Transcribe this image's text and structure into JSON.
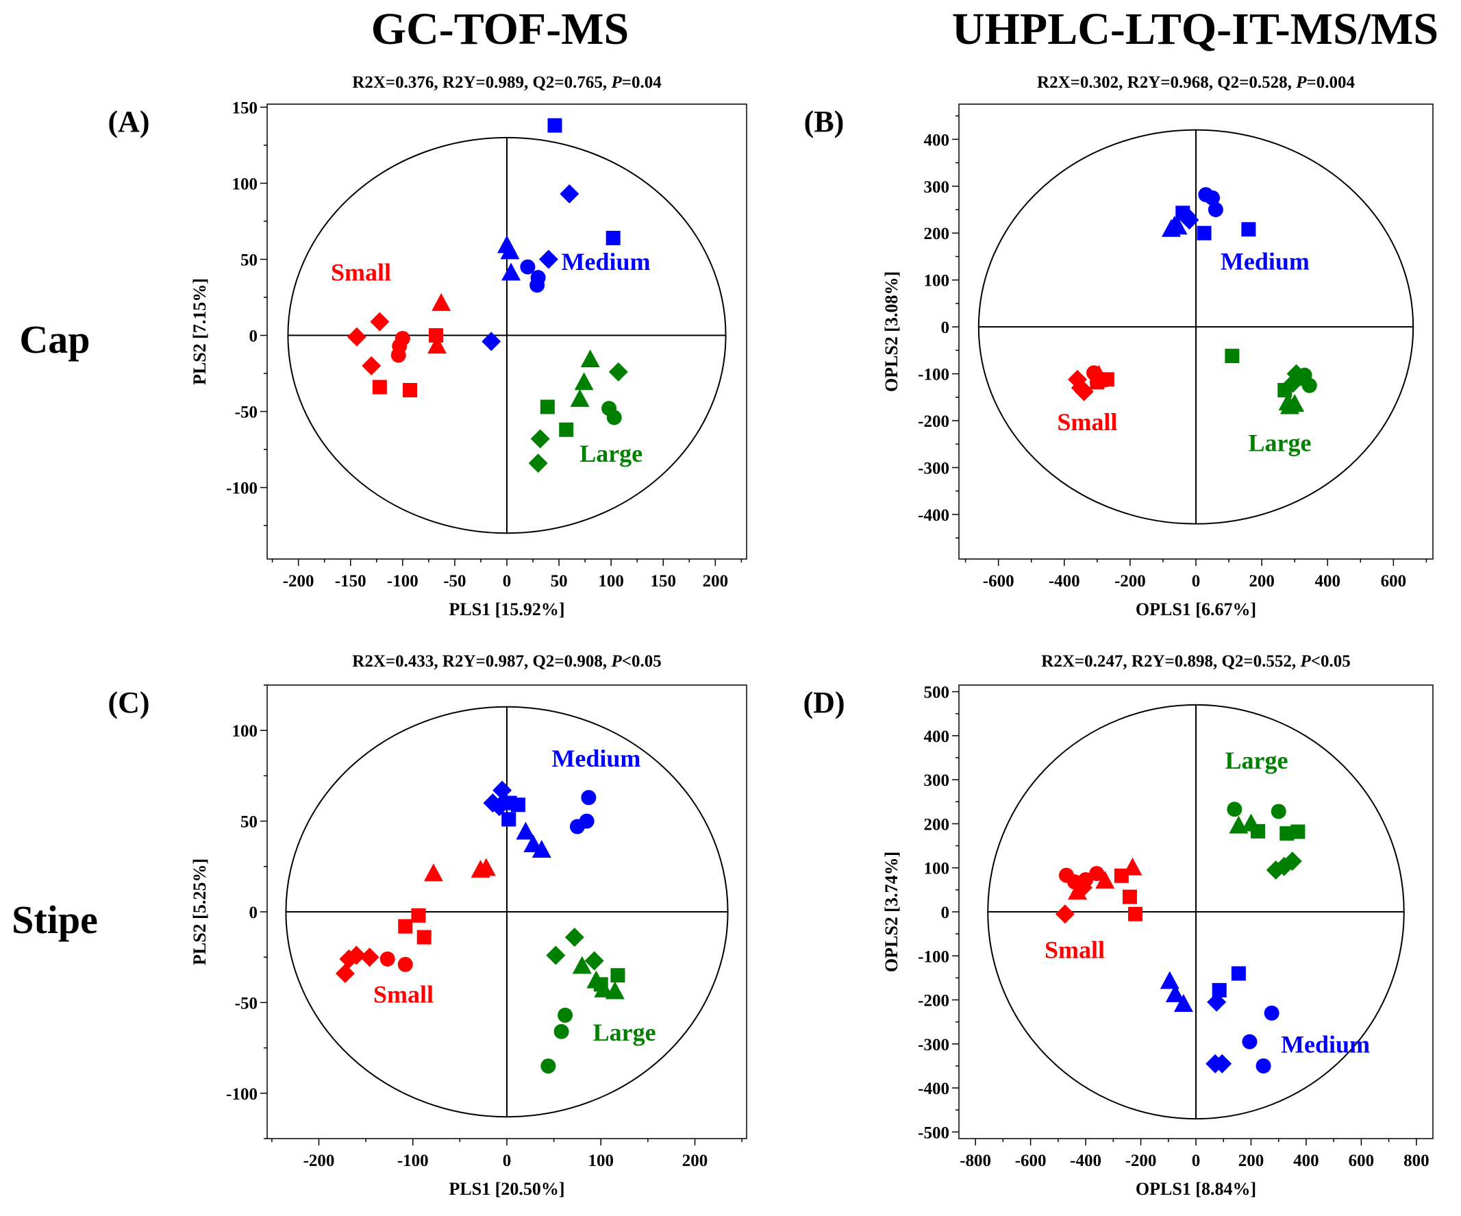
{
  "column_headers": [
    "GC-TOF-MS",
    "UHPLC-LTQ-IT-MS/MS"
  ],
  "row_headers": [
    "Cap",
    "Stipe"
  ],
  "colors": {
    "Small": "#ff0000",
    "Medium": "#0000ff",
    "Large": "#008000"
  },
  "chart_data": [
    {
      "type": "scatter",
      "panel_label": "(A)",
      "stats": {
        "R2X": "R2X=0.376",
        "R2Y": "R2Y=0.989",
        "Q2": "Q2=0.765",
        "P_symbol": "P",
        "P_value": "=0.04"
      },
      "xlabel": "PLS1 [15.92%]",
      "ylabel": "PLS2 [7.15%]",
      "xlim": [
        -230,
        230
      ],
      "ylim": [
        -147,
        152
      ],
      "xticks": [
        -200,
        -150,
        -100,
        -50,
        0,
        50,
        100,
        150,
        200
      ],
      "yticks": [
        -100,
        -50,
        0,
        50,
        100,
        150
      ],
      "ellipse": {
        "rx": 210,
        "ry": 130
      },
      "group_labels": [
        {
          "text": "Small",
          "x": -140,
          "y": 36,
          "color": "#ff0000"
        },
        {
          "text": "Medium",
          "x": 95,
          "y": 43,
          "color": "#0000ff"
        },
        {
          "text": "Large",
          "x": 100,
          "y": -83,
          "color": "#008000"
        }
      ],
      "points": [
        {
          "g": "Small",
          "m": "diamond",
          "x": -144,
          "y": -1
        },
        {
          "g": "Small",
          "m": "diamond",
          "x": -122,
          "y": 9
        },
        {
          "g": "Small",
          "m": "diamond",
          "x": -130,
          "y": -20
        },
        {
          "g": "Small",
          "m": "circle",
          "x": -100,
          "y": -2
        },
        {
          "g": "Small",
          "m": "circle",
          "x": -103,
          "y": -7
        },
        {
          "g": "Small",
          "m": "circle",
          "x": -104,
          "y": -13
        },
        {
          "g": "Small",
          "m": "square",
          "x": -68,
          "y": 0
        },
        {
          "g": "Small",
          "m": "square",
          "x": -122,
          "y": -34
        },
        {
          "g": "Small",
          "m": "square",
          "x": -93,
          "y": -36
        },
        {
          "g": "Small",
          "m": "triangle",
          "x": -63,
          "y": 21
        },
        {
          "g": "Small",
          "m": "triangle",
          "x": -67,
          "y": -7
        },
        {
          "g": "Medium",
          "m": "square",
          "x": 46,
          "y": 138
        },
        {
          "g": "Medium",
          "m": "square",
          "x": 102,
          "y": 64
        },
        {
          "g": "Medium",
          "m": "diamond",
          "x": 60,
          "y": 93
        },
        {
          "g": "Medium",
          "m": "diamond",
          "x": 40,
          "y": 50
        },
        {
          "g": "Medium",
          "m": "diamond",
          "x": -15,
          "y": -4
        },
        {
          "g": "Medium",
          "m": "triangle",
          "x": 0,
          "y": 59
        },
        {
          "g": "Medium",
          "m": "triangle",
          "x": 3,
          "y": 55
        },
        {
          "g": "Medium",
          "m": "triangle",
          "x": 4,
          "y": 41
        },
        {
          "g": "Medium",
          "m": "circle",
          "x": 20,
          "y": 45
        },
        {
          "g": "Medium",
          "m": "circle",
          "x": 30,
          "y": 38
        },
        {
          "g": "Medium",
          "m": "circle",
          "x": 29,
          "y": 33
        },
        {
          "g": "Large",
          "m": "triangle",
          "x": 80,
          "y": -16
        },
        {
          "g": "Large",
          "m": "triangle",
          "x": 74,
          "y": -31
        },
        {
          "g": "Large",
          "m": "triangle",
          "x": 70,
          "y": -42
        },
        {
          "g": "Large",
          "m": "diamond",
          "x": 107,
          "y": -24
        },
        {
          "g": "Large",
          "m": "diamond",
          "x": 32,
          "y": -68
        },
        {
          "g": "Large",
          "m": "diamond",
          "x": 30,
          "y": -84
        },
        {
          "g": "Large",
          "m": "square",
          "x": 39,
          "y": -47
        },
        {
          "g": "Large",
          "m": "square",
          "x": 57,
          "y": -62
        },
        {
          "g": "Large",
          "m": "circle",
          "x": 98,
          "y": -48
        },
        {
          "g": "Large",
          "m": "circle",
          "x": 103,
          "y": -54
        }
      ]
    },
    {
      "type": "scatter",
      "panel_label": "(B)",
      "stats": {
        "R2X": "R2X=0.302",
        "R2Y": "R2Y=0.968",
        "Q2": "Q2=0.528",
        "P_symbol": "P",
        "P_value": "=0.004"
      },
      "xlabel": "OPLS1 [6.67%]",
      "ylabel": "OPLS2 [3.08%]",
      "xlim": [
        -720,
        720
      ],
      "ylim": [
        -495,
        475
      ],
      "xticks": [
        -600,
        -400,
        -200,
        0,
        200,
        400,
        600
      ],
      "yticks": [
        -400,
        -300,
        -200,
        -100,
        0,
        100,
        200,
        300,
        400
      ],
      "ellipse": {
        "rx": 660,
        "ry": 420
      },
      "group_labels": [
        {
          "text": "Small",
          "x": -330,
          "y": -220,
          "color": "#ff0000"
        },
        {
          "text": "Medium",
          "x": 210,
          "y": 122,
          "color": "#0000ff"
        },
        {
          "text": "Large",
          "x": 255,
          "y": -265,
          "color": "#008000"
        }
      ],
      "points": [
        {
          "g": "Small",
          "m": "diamond",
          "x": -360,
          "y": -112
        },
        {
          "g": "Small",
          "m": "diamond",
          "x": -350,
          "y": -130
        },
        {
          "g": "Small",
          "m": "diamond",
          "x": -340,
          "y": -138
        },
        {
          "g": "Small",
          "m": "circle",
          "x": -310,
          "y": -98
        },
        {
          "g": "Small",
          "m": "circle",
          "x": -300,
          "y": -108
        },
        {
          "g": "Small",
          "m": "triangle",
          "x": -295,
          "y": -103
        },
        {
          "g": "Small",
          "m": "square",
          "x": -300,
          "y": -118
        },
        {
          "g": "Small",
          "m": "square",
          "x": -270,
          "y": -112
        },
        {
          "g": "Small",
          "m": "square",
          "x": -290,
          "y": -113
        },
        {
          "g": "Medium",
          "m": "circle",
          "x": 30,
          "y": 282
        },
        {
          "g": "Medium",
          "m": "circle",
          "x": 50,
          "y": 275
        },
        {
          "g": "Medium",
          "m": "circle",
          "x": 60,
          "y": 250
        },
        {
          "g": "Medium",
          "m": "square",
          "x": 160,
          "y": 208
        },
        {
          "g": "Medium",
          "m": "square",
          "x": 25,
          "y": 200
        },
        {
          "g": "Medium",
          "m": "square",
          "x": -40,
          "y": 243
        },
        {
          "g": "Medium",
          "m": "diamond",
          "x": -30,
          "y": 238
        },
        {
          "g": "Medium",
          "m": "diamond",
          "x": -20,
          "y": 228
        },
        {
          "g": "Medium",
          "m": "triangle",
          "x": -55,
          "y": 213
        },
        {
          "g": "Medium",
          "m": "triangle",
          "x": -75,
          "y": 208
        },
        {
          "g": "Medium",
          "m": "triangle",
          "x": -65,
          "y": 215
        },
        {
          "g": "Large",
          "m": "square",
          "x": 110,
          "y": -62
        },
        {
          "g": "Large",
          "m": "diamond",
          "x": 305,
          "y": -100
        },
        {
          "g": "Large",
          "m": "diamond",
          "x": 295,
          "y": -120
        },
        {
          "g": "Large",
          "m": "circle",
          "x": 330,
          "y": -103
        },
        {
          "g": "Large",
          "m": "circle",
          "x": 345,
          "y": -125
        },
        {
          "g": "Large",
          "m": "circle",
          "x": 325,
          "y": -110
        },
        {
          "g": "Large",
          "m": "square",
          "x": 270,
          "y": -135
        },
        {
          "g": "Large",
          "m": "triangle",
          "x": 280,
          "y": -162
        },
        {
          "g": "Large",
          "m": "triangle",
          "x": 300,
          "y": -165
        },
        {
          "g": "Large",
          "m": "triangle",
          "x": 285,
          "y": -170
        }
      ]
    },
    {
      "type": "scatter",
      "panel_label": "(C)",
      "stats": {
        "R2X": "R2X=0.433",
        "R2Y": "R2Y=0.987",
        "Q2": "Q2=0.908",
        "P_symbol": "P",
        "P_value": "<0.05"
      },
      "xlabel": "PLS1 [20.50%]",
      "ylabel": "PLS2 [5.25%]",
      "xlim": [
        -255,
        255
      ],
      "ylim": [
        -125,
        125
      ],
      "xticks": [
        -200,
        -100,
        0,
        100,
        200
      ],
      "yticks": [
        -100,
        -50,
        0,
        50,
        100
      ],
      "ellipse": {
        "rx": 235,
        "ry": 113
      },
      "group_labels": [
        {
          "text": "Small",
          "x": -110,
          "y": -50,
          "color": "#ff0000"
        },
        {
          "text": "Medium",
          "x": 95,
          "y": 80,
          "color": "#0000ff"
        },
        {
          "text": "Large",
          "x": 125,
          "y": -71,
          "color": "#008000"
        }
      ],
      "points": [
        {
          "g": "Small",
          "m": "diamond",
          "x": -172,
          "y": -34
        },
        {
          "g": "Small",
          "m": "diamond",
          "x": -168,
          "y": -26
        },
        {
          "g": "Small",
          "m": "diamond",
          "x": -160,
          "y": -24
        },
        {
          "g": "Small",
          "m": "diamond",
          "x": -146,
          "y": -25
        },
        {
          "g": "Small",
          "m": "circle",
          "x": -127,
          "y": -26
        },
        {
          "g": "Small",
          "m": "circle",
          "x": -108,
          "y": -29
        },
        {
          "g": "Small",
          "m": "square",
          "x": -108,
          "y": -8
        },
        {
          "g": "Small",
          "m": "square",
          "x": -94,
          "y": -2
        },
        {
          "g": "Small",
          "m": "square",
          "x": -88,
          "y": -14
        },
        {
          "g": "Small",
          "m": "triangle",
          "x": -78,
          "y": 21
        },
        {
          "g": "Small",
          "m": "triangle",
          "x": -28,
          "y": 23
        },
        {
          "g": "Small",
          "m": "triangle",
          "x": -22,
          "y": 24
        },
        {
          "g": "Medium",
          "m": "diamond",
          "x": -5,
          "y": 67
        },
        {
          "g": "Medium",
          "m": "diamond",
          "x": -15,
          "y": 60
        },
        {
          "g": "Medium",
          "m": "diamond",
          "x": -8,
          "y": 58
        },
        {
          "g": "Medium",
          "m": "square",
          "x": 3,
          "y": 60
        },
        {
          "g": "Medium",
          "m": "square",
          "x": 12,
          "y": 59
        },
        {
          "g": "Medium",
          "m": "square",
          "x": 2,
          "y": 51
        },
        {
          "g": "Medium",
          "m": "triangle",
          "x": 20,
          "y": 44
        },
        {
          "g": "Medium",
          "m": "triangle",
          "x": 28,
          "y": 37
        },
        {
          "g": "Medium",
          "m": "triangle",
          "x": 37,
          "y": 34
        },
        {
          "g": "Medium",
          "m": "circle",
          "x": 87,
          "y": 63
        },
        {
          "g": "Medium",
          "m": "circle",
          "x": 85,
          "y": 50
        },
        {
          "g": "Medium",
          "m": "circle",
          "x": 75,
          "y": 47
        },
        {
          "g": "Large",
          "m": "diamond",
          "x": 72,
          "y": -14
        },
        {
          "g": "Large",
          "m": "diamond",
          "x": 52,
          "y": -24
        },
        {
          "g": "Large",
          "m": "diamond",
          "x": 93,
          "y": -27
        },
        {
          "g": "Large",
          "m": "triangle",
          "x": 80,
          "y": -30
        },
        {
          "g": "Large",
          "m": "triangle",
          "x": 95,
          "y": -38
        },
        {
          "g": "Large",
          "m": "triangle",
          "x": 103,
          "y": -43
        },
        {
          "g": "Large",
          "m": "triangle",
          "x": 115,
          "y": -44
        },
        {
          "g": "Large",
          "m": "square",
          "x": 100,
          "y": -40
        },
        {
          "g": "Large",
          "m": "square",
          "x": 118,
          "y": -35
        },
        {
          "g": "Large",
          "m": "circle",
          "x": 62,
          "y": -57
        },
        {
          "g": "Large",
          "m": "circle",
          "x": 58,
          "y": -66
        },
        {
          "g": "Large",
          "m": "circle",
          "x": 44,
          "y": -85
        }
      ]
    },
    {
      "type": "scatter",
      "panel_label": "(D)",
      "stats": {
        "R2X": "R2X=0.247",
        "R2Y": "R2Y=0.898",
        "Q2": "Q2=0.552",
        "P_symbol": "P",
        "P_value": "<0.05"
      },
      "xlabel": "OPLS1 [8.84%]",
      "ylabel": "OPLS2 [3.74%]",
      "xlim": [
        -860,
        860
      ],
      "ylim": [
        -515,
        515
      ],
      "xticks": [
        -800,
        -600,
        -400,
        -200,
        0,
        200,
        400,
        600,
        800
      ],
      "yticks": [
        -500,
        -400,
        -300,
        -200,
        -100,
        0,
        100,
        200,
        300,
        400,
        500
      ],
      "ellipse": {
        "rx": 755,
        "ry": 470
      },
      "group_labels": [
        {
          "text": "Small",
          "x": -440,
          "y": -105,
          "color": "#ff0000"
        },
        {
          "text": "Medium",
          "x": 470,
          "y": -320,
          "color": "#0000ff"
        },
        {
          "text": "Large",
          "x": 220,
          "y": 325,
          "color": "#008000"
        }
      ],
      "points": [
        {
          "g": "Small",
          "m": "circle",
          "x": -470,
          "y": 83
        },
        {
          "g": "Small",
          "m": "circle",
          "x": -440,
          "y": 68
        },
        {
          "g": "Small",
          "m": "circle",
          "x": -400,
          "y": 73
        },
        {
          "g": "Small",
          "m": "circle",
          "x": -360,
          "y": 87
        },
        {
          "g": "Small",
          "m": "triangle",
          "x": -430,
          "y": 45
        },
        {
          "g": "Small",
          "m": "triangle",
          "x": -330,
          "y": 70
        },
        {
          "g": "Small",
          "m": "triangle",
          "x": -230,
          "y": 100
        },
        {
          "g": "Small",
          "m": "square",
          "x": -270,
          "y": 82
        },
        {
          "g": "Small",
          "m": "square",
          "x": -240,
          "y": 34
        },
        {
          "g": "Small",
          "m": "square",
          "x": -220,
          "y": -5
        },
        {
          "g": "Small",
          "m": "diamond",
          "x": -475,
          "y": -5
        },
        {
          "g": "Small",
          "m": "diamond",
          "x": -410,
          "y": 55
        },
        {
          "g": "Large",
          "m": "circle",
          "x": 140,
          "y": 233
        },
        {
          "g": "Large",
          "m": "circle",
          "x": 300,
          "y": 228
        },
        {
          "g": "Large",
          "m": "triangle",
          "x": 155,
          "y": 195
        },
        {
          "g": "Large",
          "m": "triangle",
          "x": 200,
          "y": 200
        },
        {
          "g": "Large",
          "m": "square",
          "x": 225,
          "y": 183
        },
        {
          "g": "Large",
          "m": "square",
          "x": 330,
          "y": 178
        },
        {
          "g": "Large",
          "m": "square",
          "x": 370,
          "y": 182
        },
        {
          "g": "Large",
          "m": "diamond",
          "x": 290,
          "y": 95
        },
        {
          "g": "Large",
          "m": "diamond",
          "x": 320,
          "y": 103
        },
        {
          "g": "Large",
          "m": "diamond",
          "x": 350,
          "y": 115
        },
        {
          "g": "Medium",
          "m": "triangle",
          "x": -95,
          "y": -158
        },
        {
          "g": "Medium",
          "m": "triangle",
          "x": -75,
          "y": -188
        },
        {
          "g": "Medium",
          "m": "triangle",
          "x": -45,
          "y": -210
        },
        {
          "g": "Medium",
          "m": "square",
          "x": 85,
          "y": -178
        },
        {
          "g": "Medium",
          "m": "square",
          "x": 155,
          "y": -140
        },
        {
          "g": "Medium",
          "m": "diamond",
          "x": 75,
          "y": -205
        },
        {
          "g": "Medium",
          "m": "circle",
          "x": 275,
          "y": -230
        },
        {
          "g": "Medium",
          "m": "circle",
          "x": 195,
          "y": -295
        },
        {
          "g": "Medium",
          "m": "circle",
          "x": 245,
          "y": -350
        },
        {
          "g": "Medium",
          "m": "diamond",
          "x": 70,
          "y": -345
        },
        {
          "g": "Medium",
          "m": "diamond",
          "x": 95,
          "y": -345
        }
      ]
    }
  ]
}
